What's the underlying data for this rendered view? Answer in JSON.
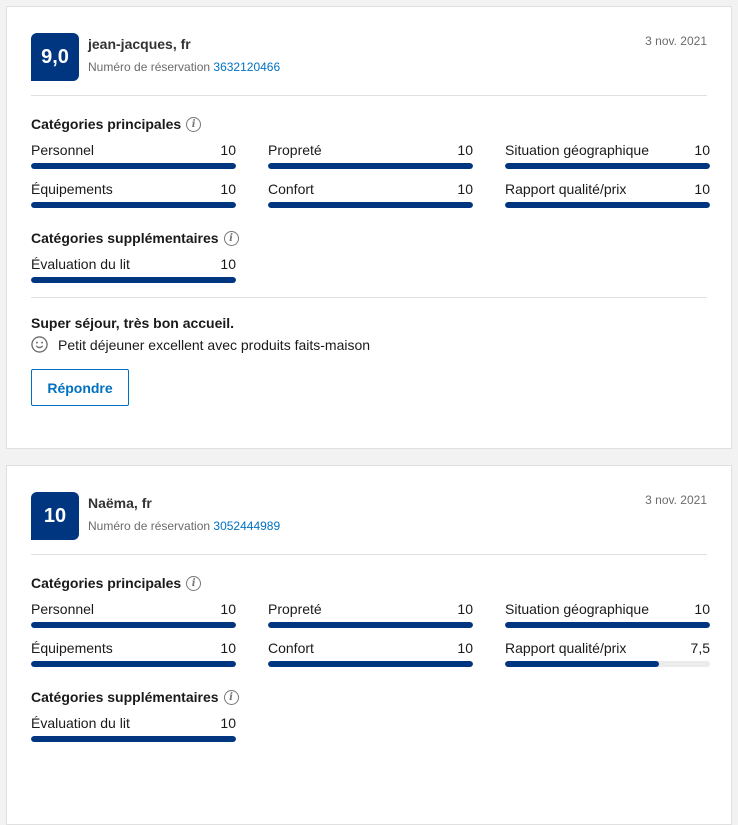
{
  "labels": {
    "main": "Catégories principales",
    "extra": "Catégories supplémentaires",
    "reservation": "Numéro de réservation",
    "reply": "Répondre"
  },
  "colors": {
    "brand": "#003580",
    "link": "#0071c2"
  },
  "reviews": [
    {
      "score": "9,0",
      "name": "jean-jacques, fr",
      "reservation_number": "3632120466",
      "date": "3 nov. 2021",
      "main": [
        {
          "label": "Personnel",
          "value": "10"
        },
        {
          "label": "Propreté",
          "value": "10"
        },
        {
          "label": "Situation géographique",
          "value": "10"
        },
        {
          "label": "Équipements",
          "value": "10"
        },
        {
          "label": "Confort",
          "value": "10"
        },
        {
          "label": "Rapport qualité/prix",
          "value": "10"
        }
      ],
      "extra": [
        {
          "label": "Évaluation du lit",
          "value": "10"
        }
      ],
      "title": "Super séjour, très bon accueil.",
      "positive": "Petit déjeuner excellent avec produits faits-maison",
      "positive_icon": "smiley-icon"
    },
    {
      "score": "10",
      "name": "Naëma, fr",
      "reservation_number": "3052444989",
      "date": "3 nov. 2021",
      "main": [
        {
          "label": "Personnel",
          "value": "10"
        },
        {
          "label": "Propreté",
          "value": "10"
        },
        {
          "label": "Situation géographique",
          "value": "10"
        },
        {
          "label": "Équipements",
          "value": "10"
        },
        {
          "label": "Confort",
          "value": "10"
        },
        {
          "label": "Rapport qualité/prix",
          "value": "7,5"
        }
      ],
      "extra": [
        {
          "label": "Évaluation du lit",
          "value": "10"
        }
      ]
    }
  ]
}
